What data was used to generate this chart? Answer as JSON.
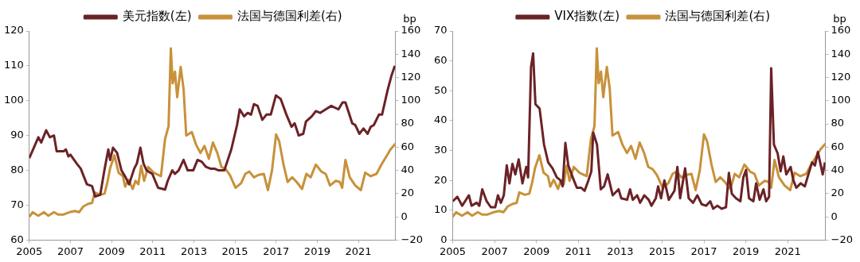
{
  "chart_data": [
    {
      "type": "line",
      "y2label": "bp",
      "legend": "top",
      "grid": false,
      "xlim": [
        2005,
        2022.8
      ],
      "xticks": [
        2005,
        2007,
        2009,
        2011,
        2013,
        2015,
        2017,
        2019,
        2021
      ],
      "ylim": [
        60,
        120
      ],
      "yticks": [
        60,
        70,
        80,
        90,
        100,
        110,
        120
      ],
      "y2lim": [
        -20,
        160
      ],
      "y2ticks": [
        {
          "value": -20,
          "label": "−20"
        },
        0,
        20,
        40,
        60,
        80,
        100,
        120,
        140,
        160
      ],
      "series": [
        {
          "name": "美元指数(左)",
          "color": "#6b2226",
          "x": [
            2005.0,
            2005.44,
            2005.58,
            2005.82,
            2006.0,
            2006.2,
            2006.33,
            2006.67,
            2006.78,
            2006.9,
            2007.0,
            2007.3,
            2007.5,
            2007.8,
            2008.05,
            2008.2,
            2008.45,
            2008.65,
            2008.84,
            2008.93,
            2009.07,
            2009.27,
            2009.48,
            2009.68,
            2009.85,
            2010.1,
            2010.23,
            2010.4,
            2010.55,
            2010.7,
            2010.98,
            2011.26,
            2011.6,
            2011.73,
            2011.95,
            2012.08,
            2012.26,
            2012.5,
            2012.7,
            2012.97,
            2013.18,
            2013.38,
            2013.59,
            2013.8,
            2014.0,
            2014.2,
            2014.48,
            2014.82,
            2015.1,
            2015.23,
            2015.44,
            2015.62,
            2015.78,
            2015.92,
            2016.1,
            2016.33,
            2016.53,
            2016.74,
            2016.99,
            2017.22,
            2017.5,
            2017.75,
            2017.9,
            2018.1,
            2018.32,
            2018.45,
            2018.73,
            2018.93,
            2019.14,
            2019.41,
            2019.68,
            2020.03,
            2020.23,
            2020.37,
            2020.7,
            2020.85,
            2021.05,
            2021.25,
            2021.45,
            2021.6,
            2021.75,
            2022.0,
            2022.15,
            2022.42,
            2022.6,
            2022.77
          ],
          "values": [
            83.5,
            89.5,
            88,
            91.5,
            89.5,
            90,
            85.5,
            85.5,
            86,
            84,
            84.5,
            82,
            80.5,
            76,
            75.5,
            72.5,
            73,
            80,
            86,
            83,
            86.5,
            85,
            80,
            78,
            76,
            80.5,
            82,
            86.5,
            82,
            80,
            79,
            75,
            74.5,
            77,
            80,
            79,
            80,
            83,
            80,
            80,
            83,
            82.5,
            81,
            80.5,
            80.5,
            80,
            80,
            86,
            93,
            97.5,
            95.5,
            96.5,
            96,
            99,
            98.5,
            94.5,
            96,
            96,
            101.5,
            100.5,
            96,
            92.5,
            93.5,
            90,
            90.5,
            94,
            95.5,
            97,
            96.5,
            97.5,
            98.5,
            97.5,
            99.5,
            99.5,
            93.5,
            93,
            90.5,
            92,
            90.5,
            92.5,
            93,
            96,
            96,
            103,
            107,
            110
          ]
        },
        {
          "name": "法国与德国利差(右)",
          "color": "#c8913a",
          "axis": "y2",
          "x": [
            2005.0,
            2005.16,
            2005.44,
            2005.71,
            2005.92,
            2006.2,
            2006.4,
            2006.67,
            2006.95,
            2007.22,
            2007.42,
            2007.63,
            2007.84,
            2008.05,
            2008.18,
            2008.45,
            2008.66,
            2008.8,
            2008.93,
            2009.14,
            2009.34,
            2009.55,
            2009.66,
            2009.82,
            2010.03,
            2010.16,
            2010.3,
            2010.44,
            2010.58,
            2010.78,
            2011.05,
            2011.4,
            2011.6,
            2011.77,
            2011.88,
            2011.97,
            2012.08,
            2012.19,
            2012.36,
            2012.5,
            2012.63,
            2012.9,
            2013.11,
            2013.32,
            2013.52,
            2013.73,
            2013.93,
            2014.14,
            2014.34,
            2014.55,
            2014.75,
            2015.03,
            2015.3,
            2015.5,
            2015.7,
            2015.92,
            2016.12,
            2016.4,
            2016.6,
            2016.8,
            2017.0,
            2017.15,
            2017.36,
            2017.56,
            2017.78,
            2018.0,
            2018.26,
            2018.47,
            2018.68,
            2018.93,
            2019.2,
            2019.41,
            2019.62,
            2019.9,
            2020.1,
            2020.21,
            2020.37,
            2020.58,
            2020.85,
            2021.12,
            2021.33,
            2021.6,
            2021.88,
            2022.12,
            2022.36,
            2022.56,
            2022.8
          ],
          "values": [
            0,
            4,
            1,
            4,
            1,
            4,
            2,
            2,
            4,
            5,
            4,
            9,
            11,
            12,
            21,
            19,
            20,
            30,
            42,
            53,
            38,
            35,
            26,
            32,
            24,
            31,
            28,
            44,
            31,
            43,
            38,
            35,
            67,
            78,
            145,
            115,
            125,
            103,
            129,
            110,
            70,
            73,
            62,
            55,
            61,
            50,
            64,
            55,
            43,
            41,
            36,
            25,
            29,
            37,
            39,
            34,
            36,
            37,
            23,
            40,
            71,
            65,
            45,
            30,
            34,
            30,
            24,
            37,
            34,
            45,
            39,
            37,
            27,
            31,
            30,
            25,
            49,
            34,
            27,
            23,
            38,
            35,
            37,
            45,
            52,
            58,
            63
          ]
        }
      ]
    },
    {
      "type": "line",
      "y2label": "bp",
      "legend": "top",
      "grid": false,
      "xlim": [
        2005,
        2022.8
      ],
      "xticks": [
        2005,
        2007,
        2009,
        2011,
        2013,
        2015,
        2017,
        2019,
        2021
      ],
      "ylim": [
        0,
        70
      ],
      "yticks": [
        0,
        10,
        20,
        30,
        40,
        50,
        60,
        70
      ],
      "y2lim": [
        -20,
        160
      ],
      "y2ticks": [
        {
          "value": -20,
          "label": "−20"
        },
        0,
        20,
        40,
        60,
        80,
        100,
        120,
        140,
        160
      ],
      "series": [
        {
          "name": "VIX指数(左)",
          "color": "#6b2226",
          "x": [
            2005.0,
            2005.22,
            2005.45,
            2005.59,
            2005.77,
            2005.9,
            2006.14,
            2006.27,
            2006.41,
            2006.62,
            2006.82,
            2007.03,
            2007.16,
            2007.3,
            2007.44,
            2007.58,
            2007.71,
            2007.85,
            2007.99,
            2008.15,
            2008.33,
            2008.51,
            2008.6,
            2008.74,
            2008.84,
            2008.95,
            2009.15,
            2009.36,
            2009.56,
            2009.77,
            2009.97,
            2010.15,
            2010.25,
            2010.38,
            2010.52,
            2010.73,
            2010.93,
            2011.14,
            2011.3,
            2011.48,
            2011.62,
            2011.71,
            2011.89,
            2012.07,
            2012.23,
            2012.4,
            2012.64,
            2012.92,
            2013.05,
            2013.33,
            2013.47,
            2013.6,
            2013.81,
            2013.95,
            2014.15,
            2014.36,
            2014.49,
            2014.7,
            2014.81,
            2014.95,
            2015.11,
            2015.32,
            2015.59,
            2015.73,
            2015.86,
            2016.1,
            2016.27,
            2016.48,
            2016.68,
            2016.89,
            2017.1,
            2017.3,
            2017.44,
            2017.64,
            2017.85,
            2018.05,
            2018.19,
            2018.33,
            2018.53,
            2018.74,
            2018.88,
            2019.01,
            2019.15,
            2019.36,
            2019.49,
            2019.66,
            2019.84,
            2019.97,
            2020.11,
            2020.21,
            2020.34,
            2020.52,
            2020.66,
            2020.79,
            2020.93,
            2021.14,
            2021.27,
            2021.41,
            2021.62,
            2021.82,
            2022.03,
            2022.16,
            2022.3,
            2022.44,
            2022.58,
            2022.67,
            2022.78
          ],
          "values": [
            13,
            14.5,
            11.5,
            13,
            15,
            11.5,
            12.5,
            11.5,
            17,
            13,
            11,
            11,
            15,
            12.5,
            15,
            25,
            19,
            25.5,
            22,
            27,
            19,
            24.5,
            21,
            58,
            62.5,
            45.5,
            44,
            32,
            26,
            24,
            21,
            20,
            18,
            32.5,
            25,
            21,
            17.5,
            17.5,
            16.5,
            20,
            23,
            36,
            32,
            17,
            18,
            22,
            15,
            17,
            14,
            13.5,
            17,
            13.5,
            15,
            12.5,
            15,
            13.5,
            11.5,
            14,
            18,
            14,
            20,
            13.5,
            16.5,
            24.5,
            14,
            24,
            14,
            12.5,
            15,
            12,
            11.5,
            13,
            10.5,
            11.5,
            10.5,
            11,
            22.5,
            15.5,
            14,
            13,
            21,
            23.5,
            14,
            13,
            19,
            13.5,
            17,
            13,
            14.5,
            57.5,
            32,
            29,
            23,
            28,
            22,
            24.5,
            20,
            17.5,
            19,
            18,
            23,
            26,
            25,
            29.5,
            25,
            22,
            26
          ]
        },
        {
          "name": "法国与德国利差(右)",
          "color": "#c8913a",
          "axis": "y2",
          "x": [
            2005.0,
            2005.16,
            2005.44,
            2005.71,
            2005.92,
            2006.2,
            2006.4,
            2006.67,
            2006.95,
            2007.22,
            2007.42,
            2007.63,
            2007.84,
            2008.05,
            2008.18,
            2008.45,
            2008.66,
            2008.8,
            2008.93,
            2009.14,
            2009.34,
            2009.55,
            2009.66,
            2009.82,
            2010.03,
            2010.16,
            2010.3,
            2010.44,
            2010.58,
            2010.78,
            2011.05,
            2011.4,
            2011.6,
            2011.77,
            2011.88,
            2011.97,
            2012.08,
            2012.19,
            2012.36,
            2012.5,
            2012.63,
            2012.9,
            2013.11,
            2013.32,
            2013.52,
            2013.73,
            2013.93,
            2014.14,
            2014.34,
            2014.55,
            2014.75,
            2015.03,
            2015.3,
            2015.5,
            2015.7,
            2015.92,
            2016.12,
            2016.4,
            2016.6,
            2016.8,
            2017.0,
            2017.15,
            2017.36,
            2017.56,
            2017.78,
            2018.0,
            2018.26,
            2018.47,
            2018.68,
            2018.93,
            2019.2,
            2019.41,
            2019.62,
            2019.9,
            2020.1,
            2020.21,
            2020.37,
            2020.58,
            2020.85,
            2021.12,
            2021.33,
            2021.6,
            2021.88,
            2022.12,
            2022.36,
            2022.56,
            2022.8
          ],
          "values": [
            0,
            4,
            1,
            4,
            1,
            4,
            2,
            2,
            4,
            5,
            4,
            9,
            11,
            12,
            21,
            19,
            20,
            30,
            42,
            53,
            38,
            35,
            26,
            32,
            24,
            31,
            28,
            44,
            31,
            43,
            38,
            35,
            67,
            78,
            145,
            115,
            125,
            103,
            129,
            110,
            70,
            73,
            62,
            55,
            61,
            50,
            64,
            55,
            43,
            41,
            36,
            25,
            29,
            37,
            39,
            34,
            36,
            37,
            23,
            40,
            71,
            65,
            45,
            30,
            34,
            30,
            24,
            37,
            34,
            45,
            39,
            37,
            27,
            31,
            30,
            25,
            49,
            34,
            27,
            23,
            38,
            35,
            37,
            45,
            52,
            58,
            63
          ]
        }
      ]
    }
  ]
}
